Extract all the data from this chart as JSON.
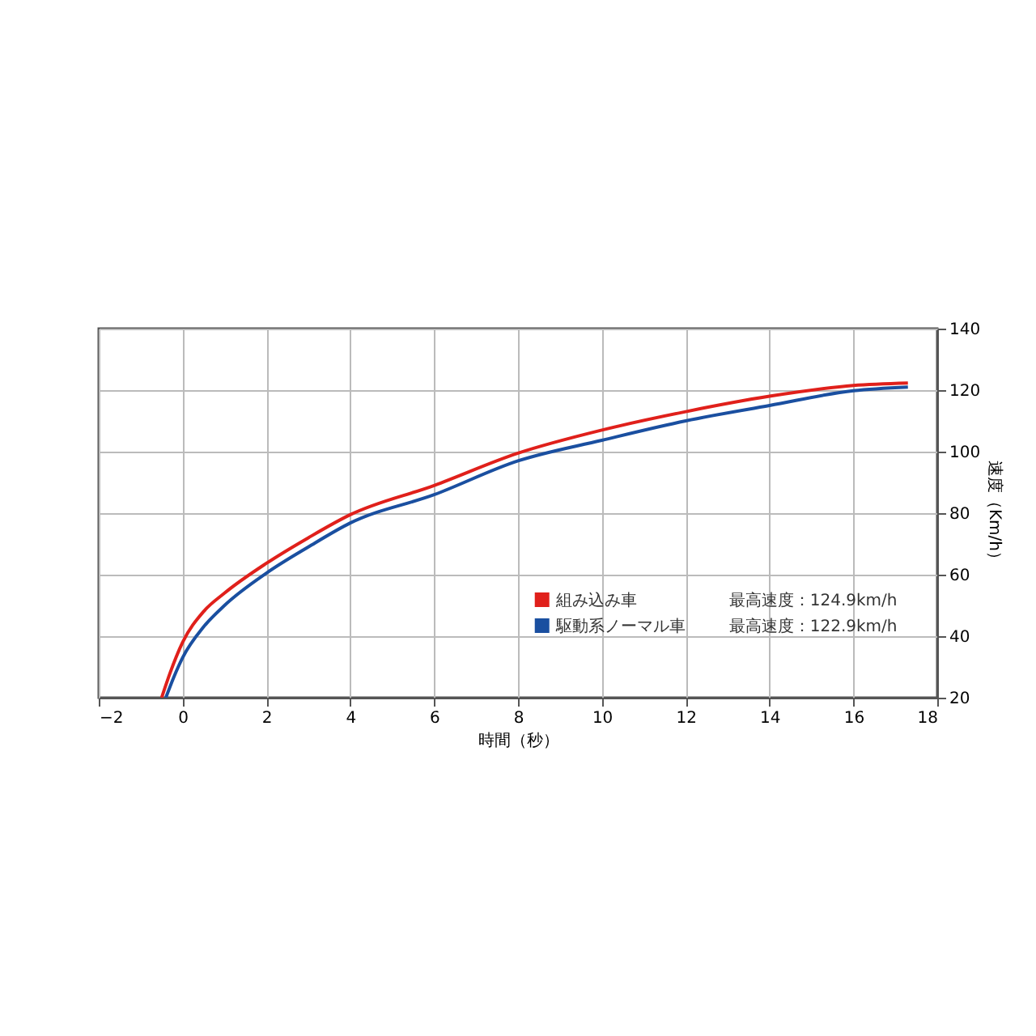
{
  "chart_data": {
    "type": "line",
    "xlabel": "時間（秒）",
    "ylabel": "速度（Km/h）",
    "xlim": [
      -2,
      18
    ],
    "xticks": [
      -2,
      0,
      2,
      4,
      6,
      8,
      10,
      12,
      14,
      16,
      18
    ],
    "ylim": [
      20,
      140
    ],
    "yticks": [
      20,
      40,
      60,
      80,
      100,
      120,
      140
    ],
    "grid": true,
    "legend": "bottom right",
    "marker": "none",
    "line_style": "solid",
    "series": [
      {
        "name": "組み込み車",
        "color": "#e0201b",
        "x": [
          -0.5,
          -0.3,
          0,
          0.5,
          1,
          2,
          3,
          4,
          6,
          8,
          10,
          12,
          14,
          16,
          17.3
        ],
        "values": [
          20,
          28,
          38,
          48,
          54,
          63.7,
          72,
          79.5,
          89,
          99.5,
          107,
          113,
          118,
          121.5,
          122.3
        ]
      },
      {
        "name": "駆動系ノーマル車",
        "color": "#1a4fa0",
        "x": [
          -0.4,
          -0.2,
          0,
          0.5,
          1,
          2,
          3,
          4,
          6,
          8,
          10,
          12,
          14,
          16,
          17.3
        ],
        "values": [
          20,
          27,
          33,
          43,
          50,
          60.5,
          69,
          76.8,
          86,
          97,
          103.7,
          110,
          115,
          119.8,
          121
        ]
      }
    ],
    "annotations": [
      "最高速度：124.9km/h",
      "最高速度：122.9km/h"
    ]
  }
}
